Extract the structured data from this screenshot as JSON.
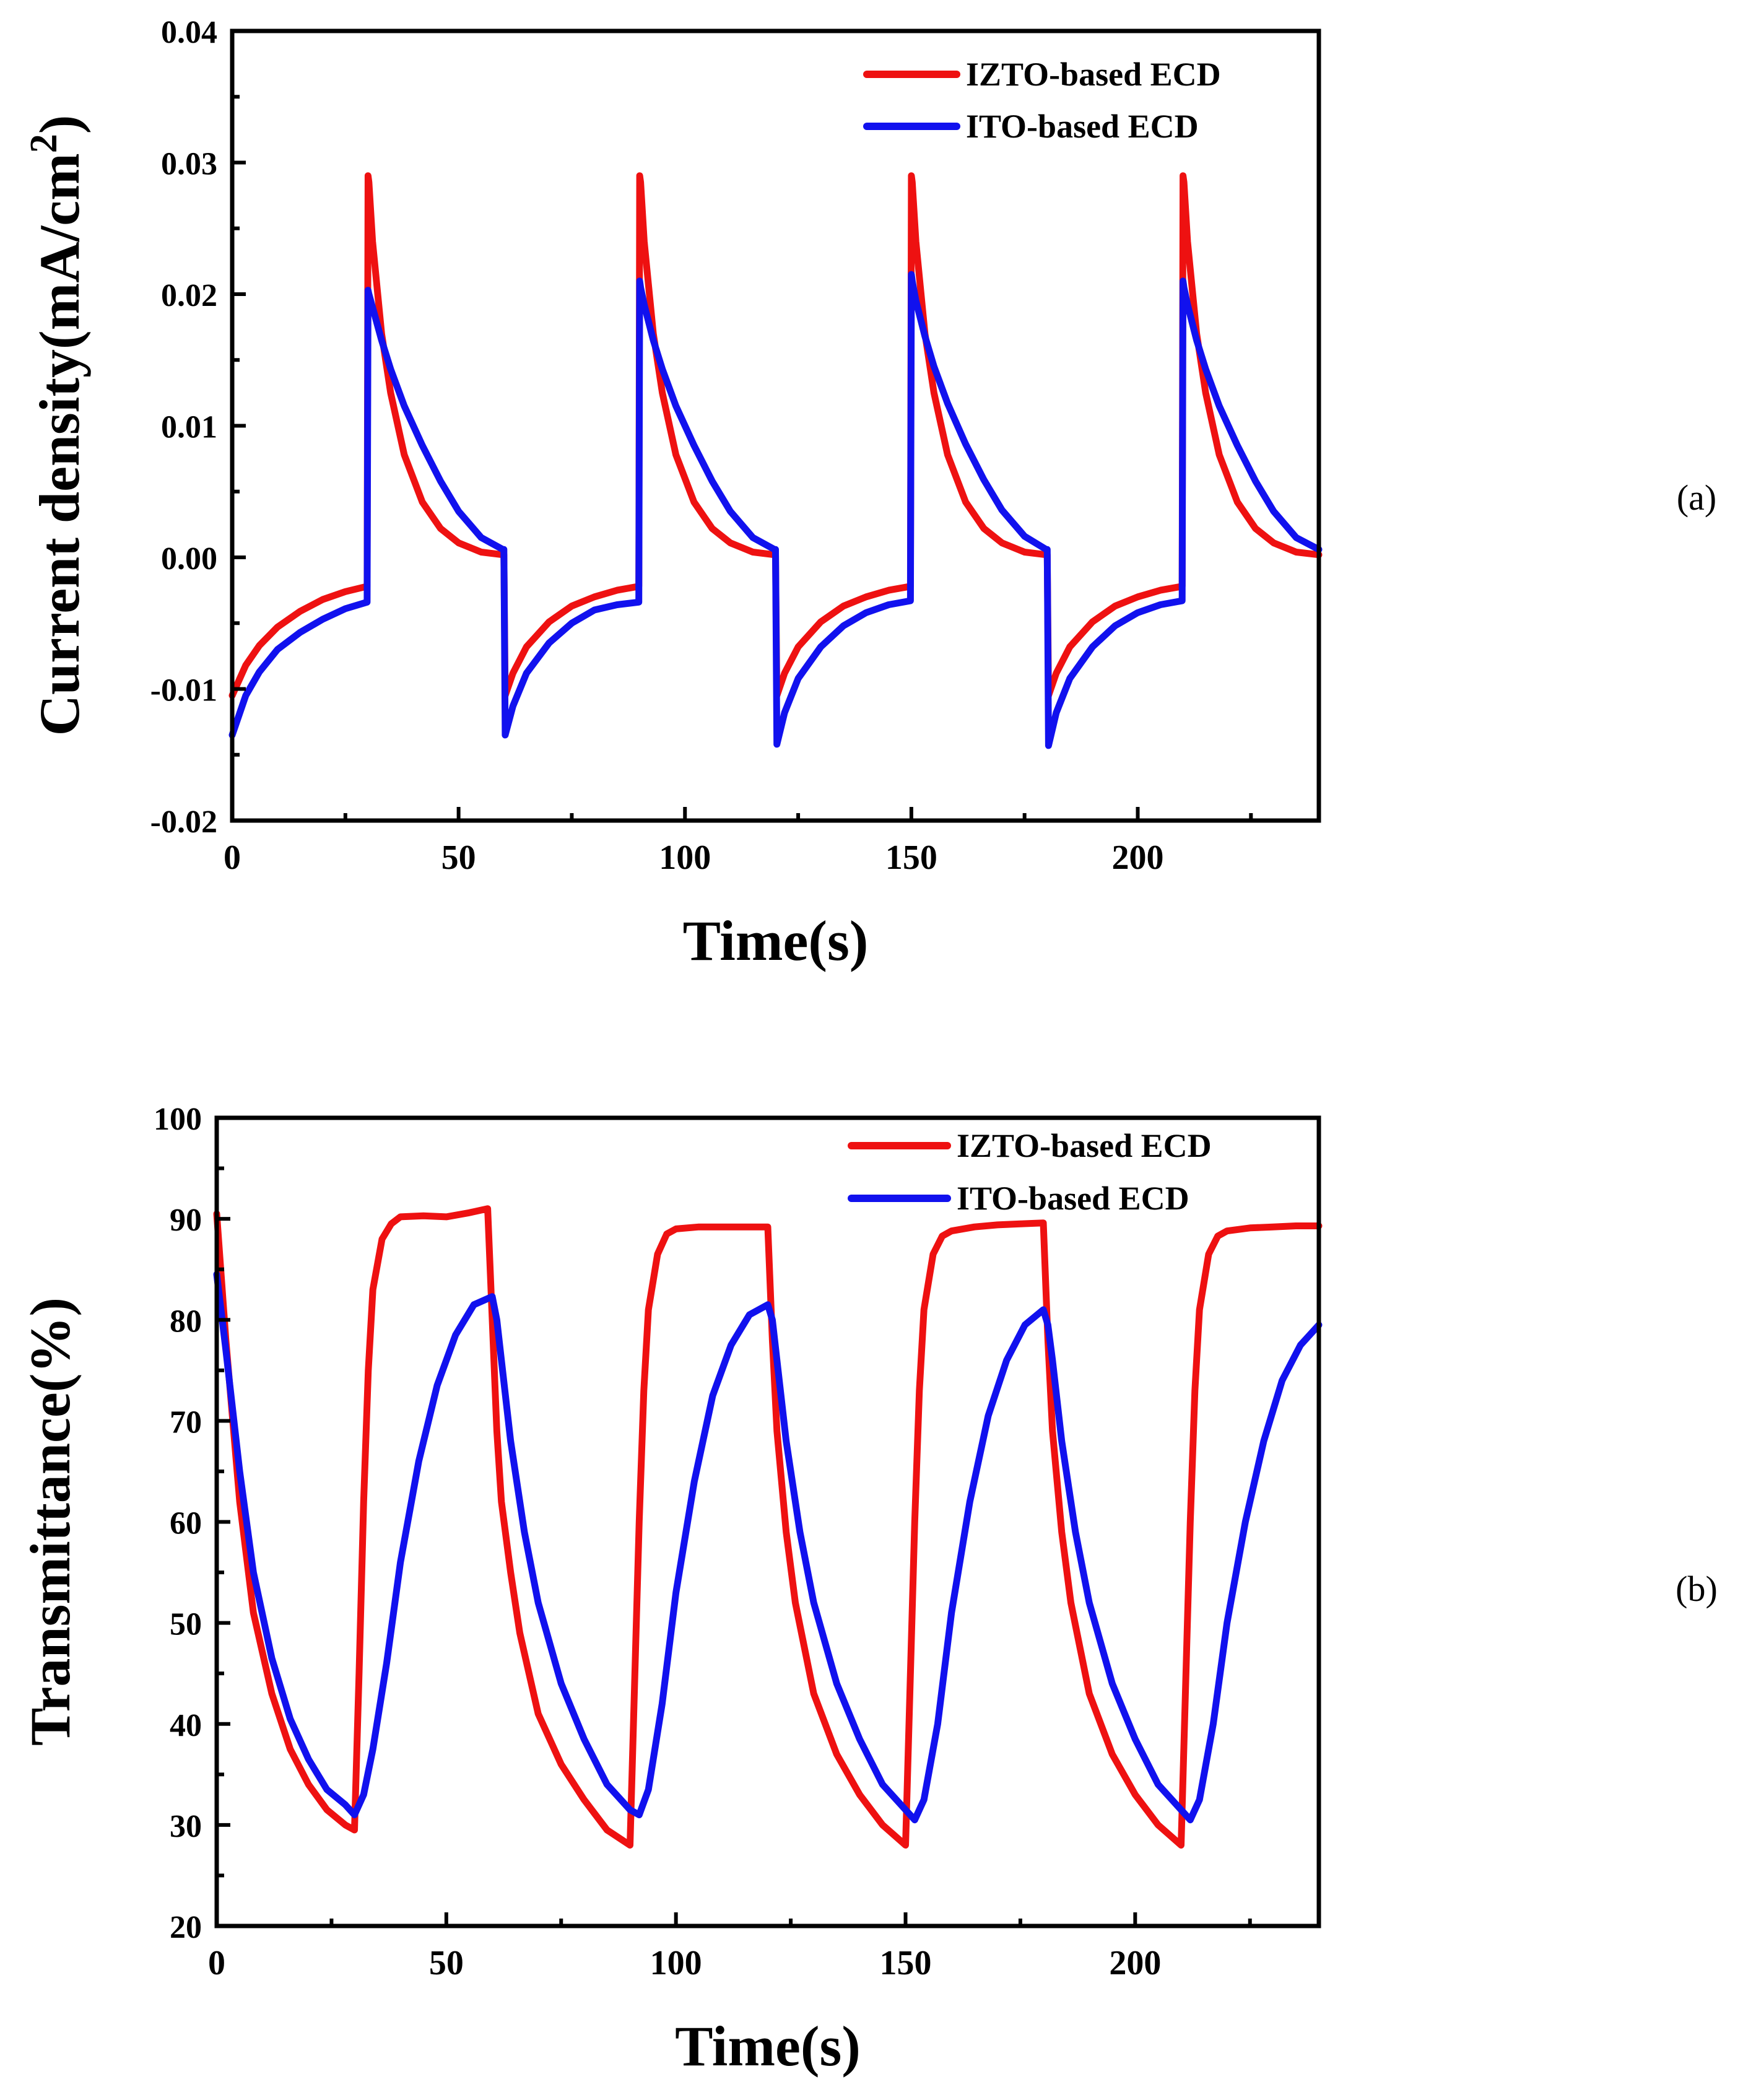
{
  "figure": {
    "panels": [
      {
        "label": "(a)"
      },
      {
        "label": "(b)"
      }
    ]
  },
  "colors": {
    "izto": "#ee1111",
    "ito": "#1111ee",
    "axis": "#000000"
  },
  "chart_data": [
    {
      "type": "line",
      "panel_label": "(a)",
      "title": "",
      "xlabel": "Time(s)",
      "ylabel": "Current density(mA/cm",
      "ylabel_superscript": "2",
      "ylabel_close": ")",
      "xlim": [
        0,
        240
      ],
      "ylim": [
        -0.02,
        0.04
      ],
      "xticks": [
        0,
        50,
        100,
        150,
        200
      ],
      "xtick_labels": [
        "0",
        "50",
        "100",
        "150",
        "200"
      ],
      "yticks": [
        -0.02,
        -0.01,
        0,
        0.01,
        0.02,
        0.03,
        0.04
      ],
      "ytick_labels": [
        "-0.02",
        "-0.01",
        "0.00",
        "0.01",
        "0.02",
        "0.03",
        "0.04"
      ],
      "grid": false,
      "legend": "top-right",
      "series": [
        {
          "name": "IZTO-based ECD",
          "color_key": "izto",
          "x": [
            0,
            3,
            6,
            10,
            15,
            20,
            25,
            29.8,
            30,
            30.2,
            31,
            33,
            35,
            38,
            42,
            46,
            50,
            55,
            59.8,
            60,
            60.3,
            62,
            65,
            70,
            75,
            80,
            85,
            89.8,
            90,
            90.2,
            91,
            93,
            95,
            98,
            102,
            106,
            110,
            115,
            119.8,
            120,
            120.3,
            122,
            125,
            130,
            135,
            140,
            145,
            149.8,
            150,
            150.2,
            151,
            153,
            155,
            158,
            162,
            166,
            170,
            175,
            179.8,
            180,
            180.3,
            182,
            185,
            190,
            195,
            200,
            205,
            209.8,
            210,
            210.2,
            211,
            213,
            215,
            218,
            222,
            226,
            230,
            235,
            240
          ],
          "values": [
            -0.0105,
            -0.0082,
            -0.0067,
            -0.0053,
            -0.0041,
            -0.0032,
            -0.0026,
            -0.0022,
            0.029,
            0.0285,
            0.024,
            0.017,
            0.0125,
            0.0078,
            0.0042,
            0.0022,
            0.0011,
            0.0004,
            0.0002,
            0.0002,
            -0.0105,
            -0.0088,
            -0.0068,
            -0.0049,
            -0.0037,
            -0.003,
            -0.0025,
            -0.0022,
            0.029,
            0.0285,
            0.024,
            0.017,
            0.0125,
            0.0078,
            0.0042,
            0.0022,
            0.0011,
            0.0004,
            0.0002,
            0.0002,
            -0.0105,
            -0.0088,
            -0.0068,
            -0.0049,
            -0.0037,
            -0.003,
            -0.0025,
            -0.0022,
            0.029,
            0.0285,
            0.024,
            0.017,
            0.0125,
            0.0078,
            0.0042,
            0.0022,
            0.0011,
            0.0004,
            0.0002,
            0.0002,
            -0.0105,
            -0.0088,
            -0.0068,
            -0.0049,
            -0.0037,
            -0.003,
            -0.0025,
            -0.0022,
            0.029,
            0.0285,
            0.024,
            0.017,
            0.0125,
            0.0078,
            0.0042,
            0.0022,
            0.0011,
            0.0004,
            0.0002
          ]
        },
        {
          "name": "ITO-based ECD",
          "color_key": "ito",
          "x": [
            0,
            3,
            6,
            10,
            15,
            20,
            25,
            29.8,
            30,
            30.2,
            31,
            33,
            35,
            38,
            42,
            46,
            50,
            55,
            59.8,
            60,
            60.3,
            62,
            65,
            70,
            75,
            80,
            85,
            89.8,
            90,
            90.2,
            91,
            93,
            95,
            98,
            102,
            106,
            110,
            115,
            119.8,
            120,
            120.3,
            122,
            125,
            130,
            135,
            140,
            145,
            149.8,
            150,
            150.2,
            151,
            153,
            155,
            158,
            162,
            166,
            170,
            175,
            179.8,
            180,
            180.3,
            182,
            185,
            190,
            195,
            200,
            205,
            209.8,
            210,
            210.2,
            211,
            213,
            215,
            218,
            222,
            226,
            230,
            235,
            240
          ],
          "values": [
            -0.0135,
            -0.0105,
            -0.0087,
            -0.007,
            -0.0057,
            -0.0047,
            -0.0039,
            -0.0034,
            0.0203,
            0.02,
            0.019,
            0.0165,
            0.0143,
            0.0115,
            0.0085,
            0.0058,
            0.0035,
            0.0015,
            0.0006,
            0.0006,
            -0.0135,
            -0.0113,
            -0.0088,
            -0.0065,
            -0.005,
            -0.004,
            -0.0036,
            -0.0034,
            0.021,
            0.0205,
            0.0192,
            0.0165,
            0.0143,
            0.0115,
            0.0085,
            0.0058,
            0.0035,
            0.0015,
            0.0006,
            0.0006,
            -0.0142,
            -0.0118,
            -0.0092,
            -0.0068,
            -0.0052,
            -0.0042,
            -0.0036,
            -0.0033,
            0.0215,
            0.021,
            0.0195,
            0.0168,
            0.0145,
            0.0117,
            0.0086,
            0.0059,
            0.0036,
            0.0016,
            0.0006,
            0.0006,
            -0.0143,
            -0.0118,
            -0.0092,
            -0.0068,
            -0.0052,
            -0.0042,
            -0.0036,
            -0.0033,
            0.021,
            0.0205,
            0.0192,
            0.0165,
            0.0143,
            0.0115,
            0.0085,
            0.0058,
            0.0035,
            0.0015,
            0.0006
          ]
        }
      ]
    },
    {
      "type": "line",
      "panel_label": "(b)",
      "title": "",
      "xlabel": "Time(s)",
      "ylabel": "Transmittance(%)",
      "xlim": [
        0,
        240
      ],
      "ylim": [
        20,
        100
      ],
      "xticks": [
        0,
        50,
        100,
        150,
        200
      ],
      "xtick_labels": [
        "0",
        "50",
        "100",
        "150",
        "200"
      ],
      "yticks": [
        20,
        30,
        40,
        50,
        60,
        70,
        80,
        90,
        100
      ],
      "ytick_labels": [
        "20",
        "30",
        "40",
        "50",
        "60",
        "70",
        "80",
        "90",
        "100"
      ],
      "grid": false,
      "legend": "top-right",
      "series": [
        {
          "name": "IZTO-based ECD",
          "color_key": "izto",
          "x": [
            0,
            2,
            5,
            8,
            12,
            16,
            20,
            24,
            28,
            30,
            31,
            32,
            33,
            34,
            36,
            38,
            40,
            45,
            50,
            55,
            59,
            60,
            61,
            62,
            64,
            66,
            70,
            75,
            80,
            85,
            90,
            91,
            92,
            93,
            94,
            96,
            98,
            100,
            105,
            110,
            115,
            120,
            121,
            122,
            124,
            126,
            130,
            135,
            140,
            145,
            150,
            151,
            152,
            153,
            154,
            156,
            158,
            160,
            165,
            170,
            175,
            180,
            181,
            182,
            184,
            186,
            190,
            195,
            200,
            205,
            210,
            211,
            212,
            213,
            214,
            216,
            218,
            220,
            225,
            230,
            235,
            240
          ],
          "values": [
            90.5,
            78,
            62,
            51,
            43,
            37.5,
            34,
            31.5,
            30,
            29.5,
            45,
            62,
            75,
            83,
            88,
            89.5,
            90.2,
            90.3,
            90.2,
            90.6,
            91,
            80,
            69,
            62,
            55,
            49,
            41,
            36,
            32.5,
            29.5,
            28,
            44,
            60,
            73,
            81,
            86.5,
            88.5,
            89,
            89.2,
            89.2,
            89.2,
            89.2,
            78,
            69,
            59,
            52,
            43,
            37,
            33,
            30,
            28,
            44,
            60,
            73,
            81,
            86.5,
            88.3,
            88.8,
            89.2,
            89.4,
            89.5,
            89.6,
            78,
            69,
            59,
            52,
            43,
            37,
            33,
            30,
            28,
            44,
            60,
            73,
            81,
            86.5,
            88.3,
            88.8,
            89.1,
            89.2,
            89.3,
            89.3
          ]
        },
        {
          "name": "ITO-based ECD",
          "color_key": "ito",
          "x": [
            0,
            2,
            5,
            8,
            12,
            16,
            20,
            24,
            28,
            30,
            32,
            34,
            37,
            40,
            44,
            48,
            52,
            56,
            60,
            61,
            62,
            64,
            67,
            70,
            75,
            80,
            85,
            90,
            92,
            94,
            97,
            100,
            104,
            108,
            112,
            116,
            120,
            121,
            122,
            124,
            127,
            130,
            135,
            140,
            145,
            150,
            152,
            154,
            157,
            160,
            164,
            168,
            172,
            176,
            180,
            181,
            182,
            184,
            187,
            190,
            195,
            200,
            205,
            210,
            212,
            214,
            217,
            220,
            224,
            228,
            232,
            236,
            240
          ],
          "values": [
            84.5,
            77,
            65,
            55,
            46.5,
            40.5,
            36.5,
            33.5,
            32,
            31,
            33,
            37.5,
            46,
            56,
            66,
            73.5,
            78.5,
            81.5,
            82.3,
            80,
            76,
            68,
            59,
            52,
            44,
            38.5,
            34,
            31.5,
            31,
            33.5,
            42,
            53,
            64,
            72.5,
            77.5,
            80.5,
            81.5,
            80,
            76,
            68,
            59,
            52,
            44,
            38.5,
            34,
            31.5,
            30.5,
            32.5,
            40,
            51,
            62,
            70.5,
            76,
            79.5,
            81,
            79.5,
            76,
            68,
            59,
            52,
            44,
            38.5,
            34,
            31.5,
            30.5,
            32.5,
            40,
            50,
            60,
            68,
            74,
            77.5,
            79.5
          ]
        }
      ]
    }
  ]
}
